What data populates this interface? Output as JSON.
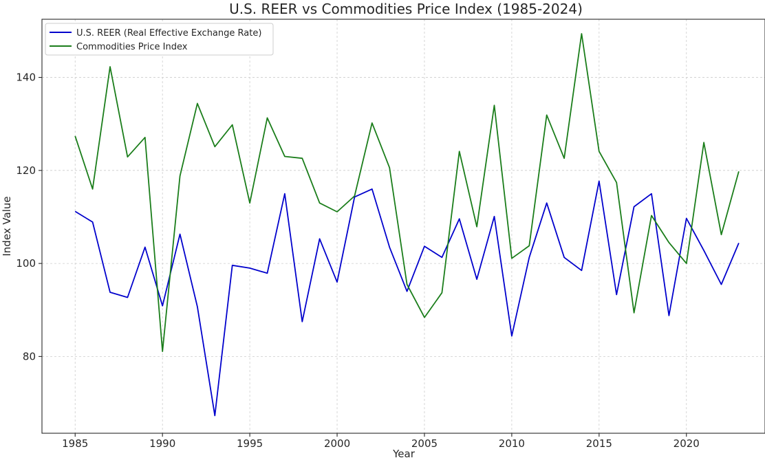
{
  "chart_data": {
    "type": "line",
    "title": "U.S. REER vs Commodities Price Index (1985-2024)",
    "xlabel": "Year",
    "ylabel": "Index Value",
    "xlim": [
      1983.1,
      2024.5
    ],
    "ylim": [
      63.5,
      152.5
    ],
    "xticks": [
      1985,
      1990,
      1995,
      2000,
      2005,
      2010,
      2015,
      2020
    ],
    "yticks": [
      80,
      100,
      120,
      140
    ],
    "grid": true,
    "legend_position": "top-left",
    "x": [
      1985,
      1986,
      1987,
      1988,
      1989,
      1990,
      1991,
      1992,
      1993,
      1994,
      1995,
      1996,
      1997,
      1998,
      1999,
      2000,
      2001,
      2002,
      2003,
      2004,
      2005,
      2006,
      2007,
      2008,
      2009,
      2010,
      2011,
      2012,
      2013,
      2014,
      2015,
      2016,
      2017,
      2018,
      2019,
      2020,
      2021,
      2022,
      2023
    ],
    "series": [
      {
        "name": "U.S. REER (Real Effective Exchange Rate)",
        "color": "#0000cc",
        "values": [
          111.2,
          108.9,
          93.8,
          92.7,
          103.5,
          90.9,
          106.3,
          90.7,
          67.3,
          99.6,
          99.0,
          97.9,
          115.0,
          87.5,
          105.3,
          96.0,
          114.3,
          116.0,
          103.5,
          94.0,
          103.7,
          101.3,
          109.6,
          96.6,
          110.1,
          84.4,
          101.3,
          113.0,
          101.3,
          98.5,
          117.7,
          93.3,
          112.2,
          115.0,
          88.8,
          109.7,
          102.8,
          95.5,
          104.4
        ]
      },
      {
        "name": "Commodities Price Index",
        "color": "#1a7d1a",
        "values": [
          127.4,
          116.0,
          142.3,
          122.9,
          127.1,
          81.1,
          118.8,
          134.4,
          125.1,
          129.8,
          113.0,
          131.3,
          123.0,
          122.6,
          113.0,
          111.1,
          114.5,
          130.2,
          120.6,
          95.5,
          88.4,
          93.7,
          124.1,
          107.9,
          134.0,
          101.1,
          103.8,
          131.9,
          122.6,
          149.4,
          124.1,
          117.4,
          89.4,
          110.3,
          104.5,
          100.0,
          126.0,
          106.2,
          119.8
        ]
      }
    ]
  }
}
